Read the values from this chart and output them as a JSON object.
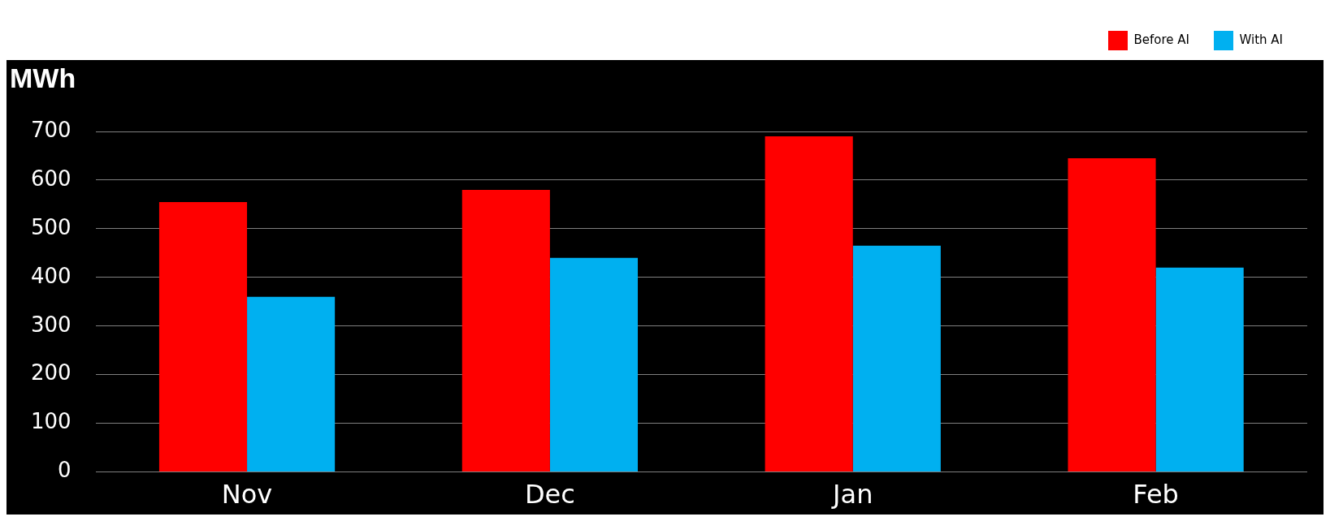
{
  "chart_data": {
    "type": "bar",
    "ylabel": "MWh",
    "categories": [
      "Nov",
      "Dec",
      "Jan",
      "Feb"
    ],
    "series": [
      {
        "name": "Before AI",
        "color": "#ff0000",
        "values": [
          555,
          580,
          690,
          645
        ]
      },
      {
        "name": "With AI",
        "color": "#00b0f0",
        "values": [
          360,
          440,
          465,
          420
        ]
      }
    ],
    "ylim": [
      0,
      700
    ],
    "yticks": [
      0,
      100,
      200,
      300,
      400,
      500,
      600,
      700
    ],
    "grid": "y",
    "legend": "top right"
  }
}
